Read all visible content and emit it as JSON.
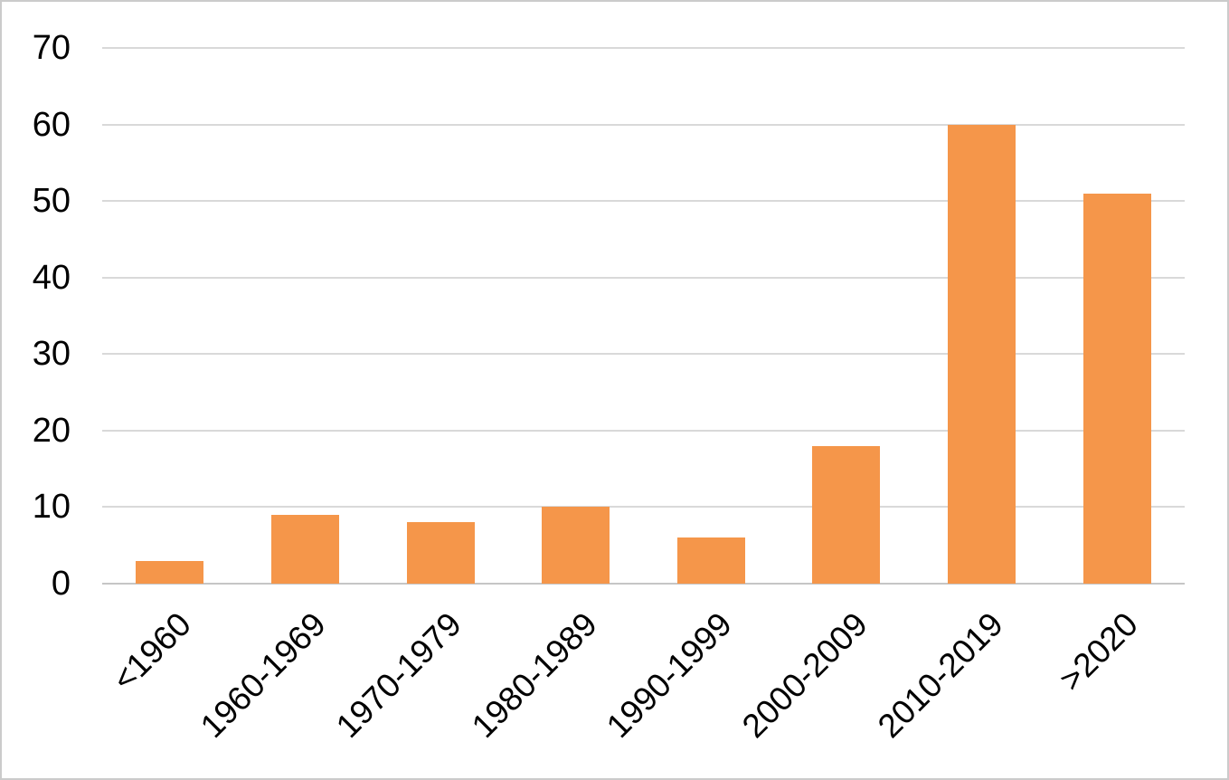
{
  "chart_data": {
    "type": "bar",
    "title": "",
    "xlabel": "",
    "ylabel": "",
    "categories": [
      "<1960",
      "1960-1969",
      "1970-1979",
      "1980-1989",
      "1990-1999",
      "2000-2009",
      "2010-2019",
      ">2020"
    ],
    "values": [
      3,
      9,
      8,
      10,
      6,
      18,
      60,
      51
    ],
    "ylim": [
      0,
      70
    ],
    "yticks": [
      0,
      10,
      20,
      30,
      40,
      50,
      60,
      70
    ],
    "grid": true,
    "legend": false,
    "x_label_rotation_deg": 45,
    "bar_color": "#F5964A",
    "gridline_color": "#D9D9D9",
    "axis_line_color": "#C6C6C6",
    "text_color": "#000000",
    "frame_border_color": "#CBCBCB",
    "background_color": "#FFFFFF"
  }
}
